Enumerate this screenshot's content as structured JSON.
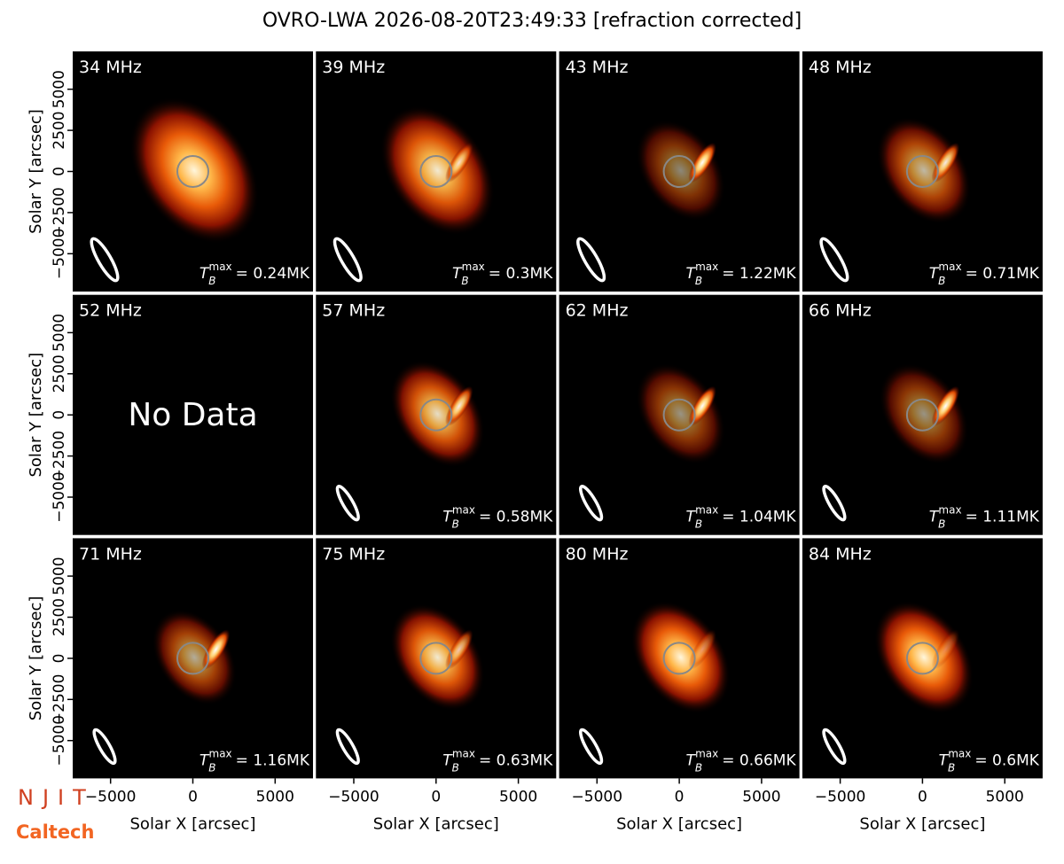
{
  "chart_data": {
    "type": "image",
    "title": "OVRO-LWA 2026-08-20T23:49:33 [refraction corrected]",
    "x_label": "Solar X [arcsec]",
    "y_label": "Solar Y [arcsec]",
    "xlim": [
      -7300,
      7300
    ],
    "ylim": [
      -7300,
      7300
    ],
    "xticks": [
      {
        "value": -5000,
        "label": "−5000"
      },
      0,
      5000
    ],
    "yticks": [
      {
        "value": -5000,
        "label": "−5000"
      },
      {
        "value": -2500,
        "label": "−2500"
      },
      0,
      2500,
      5000
    ],
    "tmax_symbol": "T",
    "tmax_sub": "B",
    "tmax_sup": "max",
    "tmax_eq": "= ",
    "panels": [
      {
        "freq": "34 MHz",
        "tmax": "0.24MK"
      },
      {
        "freq": "39 MHz",
        "tmax": "0.3MK"
      },
      {
        "freq": "43 MHz",
        "tmax": "1.22MK"
      },
      {
        "freq": "48 MHz",
        "tmax": "0.71MK"
      },
      {
        "freq": "52 MHz",
        "note": "No Data"
      },
      {
        "freq": "57 MHz",
        "tmax": "0.58MK"
      },
      {
        "freq": "62 MHz",
        "tmax": "1.04MK"
      },
      {
        "freq": "66 MHz",
        "tmax": "1.11MK"
      },
      {
        "freq": "71 MHz",
        "tmax": "1.16MK"
      },
      {
        "freq": "75 MHz",
        "tmax": "0.63MK"
      },
      {
        "freq": "80 MHz",
        "tmax": "0.66MK"
      },
      {
        "freq": "84 MHz",
        "tmax": "0.6MK"
      }
    ],
    "logos": [
      "NJIT",
      "Caltech"
    ]
  }
}
